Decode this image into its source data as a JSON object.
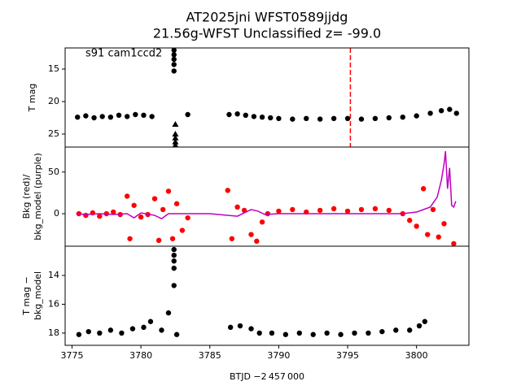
{
  "chart_data": [
    {
      "type": "scatter",
      "title": [
        "AT2025jni  WFST0589jjdg",
        "21.56g-WFST Unclassified z= -99.0"
      ],
      "ylabel": [
        "T mag"
      ],
      "annotation": "s91 cam1ccd2",
      "xlim": [
        3774.5,
        3803.8
      ],
      "ylim": [
        27,
        11.75
      ],
      "yticks": [
        15,
        20,
        25
      ],
      "vlines": [
        {
          "x": 3795.2,
          "color": "#ff0000"
        }
      ],
      "series": [
        {
          "marker": "circle",
          "color": "#000000",
          "x": [
            3775.4,
            3776,
            3776.6,
            3777.2,
            3777.8,
            3778.4,
            3779,
            3779.6,
            3780.2,
            3780.8,
            3782.4,
            3782.4,
            3782.4,
            3782.4,
            3782.4,
            3783.4,
            3786.4,
            3787,
            3787.6,
            3788.2,
            3788.8,
            3789.4,
            3790,
            3791,
            3792,
            3793,
            3794,
            3795,
            3796,
            3797,
            3798,
            3799,
            3800,
            3801,
            3801.8,
            3802.4,
            3802.9
          ],
          "values": [
            22.4,
            22.2,
            22.5,
            22.3,
            22.4,
            22.1,
            22.3,
            22.0,
            22.1,
            22.3,
            12.1,
            12.8,
            13.5,
            14.3,
            15.3,
            22.0,
            22.0,
            21.9,
            22.1,
            22.3,
            22.4,
            22.5,
            22.6,
            22.7,
            22.6,
            22.7,
            22.6,
            22.6,
            22.7,
            22.6,
            22.5,
            22.4,
            22.2,
            21.8,
            21.4,
            21.2,
            21.8
          ]
        },
        {
          "marker": "triangle",
          "color": "#000000",
          "x": [
            3782.5,
            3782.5,
            3782.5,
            3782.5,
            3782.5
          ],
          "values": [
            23.5,
            25,
            25.6,
            26.2,
            26.7
          ]
        }
      ]
    },
    {
      "type": "scatter",
      "ylabel": [
        "Bkg (red)/",
        "bkg_model (purple)"
      ],
      "xlim": [
        3774.5,
        3803.8
      ],
      "ylim": [
        -39,
        80
      ],
      "yticks": [
        0,
        50
      ],
      "series": [
        {
          "marker": "circle",
          "color": "#ff0000",
          "x": [
            3775.5,
            3776,
            3776.5,
            3777,
            3777.5,
            3778,
            3778.5,
            3779,
            3779.2,
            3779.5,
            3780,
            3780.5,
            3781,
            3781.3,
            3781.6,
            3782,
            3782.3,
            3782.6,
            3783,
            3783.4,
            3786.3,
            3786.6,
            3787,
            3787.5,
            3788,
            3788.4,
            3788.8,
            3789.2,
            3790,
            3791,
            3792,
            3793,
            3794,
            3795,
            3796,
            3797,
            3798,
            3799,
            3799.5,
            3800,
            3800.5,
            3800.8,
            3801.2,
            3801.6,
            3802,
            3802.7
          ],
          "values": [
            0,
            -2,
            1,
            -3,
            0,
            2,
            -1,
            21,
            -30,
            10,
            -4,
            -1,
            18,
            -32,
            5,
            27,
            -30,
            12,
            -20,
            -5,
            28,
            -30,
            8,
            4,
            -25,
            -33,
            -10,
            0,
            3,
            5,
            2,
            4,
            6,
            3,
            5,
            6,
            4,
            0,
            -8,
            -15,
            30,
            -25,
            5,
            -28,
            -12,
            -36
          ]
        },
        {
          "marker": "line",
          "color": "#bf00bf",
          "x": [
            3775.3,
            3776,
            3777,
            3778,
            3779,
            3779.5,
            3780,
            3781,
            3781.5,
            3782,
            3783,
            3785,
            3787,
            3788,
            3788.5,
            3789,
            3790,
            3795,
            3799,
            3800,
            3801,
            3801.5,
            3801.8,
            3802,
            3802.1,
            3802.25,
            3802.4,
            3802.55,
            3802.7,
            3802.85
          ],
          "values": [
            0,
            -1,
            0,
            -1,
            0,
            -5,
            1,
            -2,
            -6,
            0,
            0,
            0,
            -3,
            5,
            3,
            -1,
            0,
            0,
            0,
            2,
            8,
            20,
            40,
            60,
            75,
            30,
            55,
            10,
            8,
            15
          ]
        }
      ]
    },
    {
      "type": "scatter",
      "ylabel": [
        "T mag −",
        "bkg_model"
      ],
      "xlabel": "BTJD −2 457 000",
      "xlim": [
        3774.5,
        3803.8
      ],
      "ylim": [
        18.85,
        11.97
      ],
      "yticks": [
        14,
        16,
        18
      ],
      "xticks": [
        3775,
        3780,
        3785,
        3790,
        3795,
        3800
      ],
      "series": [
        {
          "marker": "circle",
          "color": "#000000",
          "x": [
            3775.5,
            3776.2,
            3777,
            3777.8,
            3778.6,
            3779.4,
            3780.2,
            3780.7,
            3781.5,
            3782,
            3782.4,
            3782.4,
            3782.4,
            3782.4,
            3782.4,
            3782.6,
            3786.5,
            3787.2,
            3788,
            3788.6,
            3789.5,
            3790.5,
            3791.5,
            3792.5,
            3793.5,
            3794.5,
            3795.5,
            3796.5,
            3797.5,
            3798.5,
            3799.5,
            3800.2,
            3800.6
          ],
          "values": [
            18.1,
            17.9,
            18.0,
            17.8,
            18.0,
            17.7,
            17.6,
            17.2,
            17.8,
            16.6,
            12.2,
            12.6,
            13.0,
            13.5,
            14.7,
            18.1,
            17.6,
            17.5,
            17.7,
            18.0,
            18.0,
            18.1,
            18.0,
            18.1,
            18.0,
            18.1,
            18.0,
            18.0,
            17.9,
            17.8,
            17.8,
            17.5,
            17.2
          ]
        }
      ]
    }
  ]
}
